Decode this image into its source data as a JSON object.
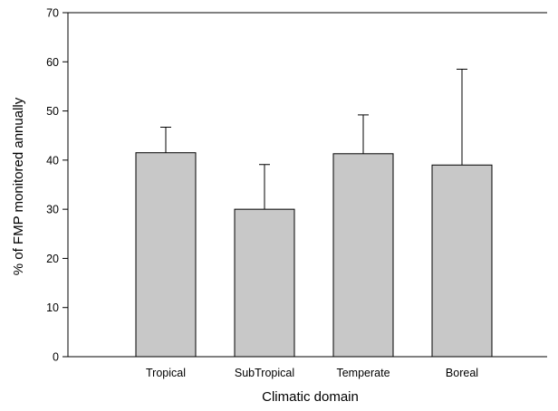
{
  "chart_data": {
    "type": "bar",
    "categories": [
      "Tropical",
      "SubTropical",
      "Temperate",
      "Boreal"
    ],
    "values": [
      41.5,
      30.0,
      41.3,
      39.0
    ],
    "error_upper": [
      46.7,
      39.1,
      49.2,
      58.5
    ],
    "xlabel": "Climatic domain",
    "ylabel": "% of FMP monitored annually",
    "ylim": [
      0,
      70
    ],
    "yticks": [
      0,
      10,
      20,
      30,
      40,
      50,
      60,
      70
    ],
    "grid": false,
    "bar_color": "#c8c8c8"
  }
}
